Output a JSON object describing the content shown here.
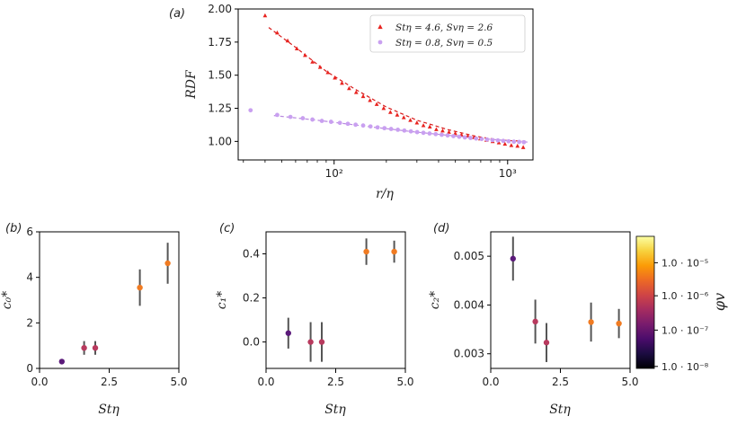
{
  "chart_data": [
    {
      "panel_label": "(a)",
      "type": "scatter",
      "x_scale": "log",
      "xlabel": "r/η",
      "ylabel": "RDF",
      "xlim": [
        28,
        1400
      ],
      "ylim": [
        0.86,
        2.0
      ],
      "ytick_labels": [
        "1.00",
        "1.25",
        "1.50",
        "1.75",
        "2.00"
      ],
      "ytick_values": [
        1.0,
        1.25,
        1.5,
        1.75,
        2.0
      ],
      "xtick_labels": [
        "10²",
        "10³"
      ],
      "xtick_values": [
        100,
        1000
      ],
      "legend_position": "top-right",
      "series": [
        {
          "name": "St_η = 4.6, Sv_η = 2.6",
          "legend_label": "Stη = 4.6, Svη = 2.6",
          "marker": "triangle",
          "color": "#e8231f",
          "x": [
            40,
            47,
            54,
            61,
            68,
            75,
            83,
            92,
            101,
            111,
            122,
            134,
            147,
            161,
            176,
            193,
            211,
            231,
            252,
            275,
            300,
            327,
            356,
            388,
            422,
            459,
            499,
            542,
            589,
            640,
            695,
            755,
            820,
            890,
            965,
            1050,
            1140,
            1230
          ],
          "y": [
            1.95,
            1.82,
            1.76,
            1.7,
            1.65,
            1.6,
            1.56,
            1.52,
            1.48,
            1.44,
            1.4,
            1.37,
            1.34,
            1.31,
            1.28,
            1.25,
            1.22,
            1.2,
            1.18,
            1.16,
            1.14,
            1.12,
            1.11,
            1.09,
            1.08,
            1.07,
            1.06,
            1.05,
            1.04,
            1.03,
            1.02,
            1.01,
            1.0,
            0.99,
            0.98,
            0.97,
            0.965,
            0.955
          ],
          "fit_x": [
            42,
            60,
            90,
            130,
            200,
            300,
            450,
            650,
            900,
            1300
          ],
          "fit_y": [
            1.86,
            1.71,
            1.53,
            1.4,
            1.26,
            1.16,
            1.09,
            1.04,
            1.01,
            1.0
          ]
        },
        {
          "name": "St_η = 0.8, Sv_η = 0.5",
          "legend_label": "Stη = 0.8, Svη = 0.5",
          "marker": "circle",
          "color": "#c9a0f0",
          "x": [
            33,
            47,
            56,
            66,
            75,
            85,
            96,
            108,
            120,
            133,
            147,
            162,
            178,
            195,
            213,
            233,
            254,
            277,
            301,
            327,
            355,
            385,
            417,
            451,
            487,
            526,
            567,
            611,
            658,
            708,
            761,
            818,
            879,
            944,
            1013,
            1087,
            1166,
            1240
          ],
          "y": [
            1.235,
            1.2,
            1.185,
            1.175,
            1.165,
            1.155,
            1.148,
            1.14,
            1.133,
            1.126,
            1.12,
            1.113,
            1.106,
            1.1,
            1.094,
            1.088,
            1.082,
            1.076,
            1.07,
            1.065,
            1.06,
            1.055,
            1.05,
            1.045,
            1.04,
            1.035,
            1.03,
            1.026,
            1.022,
            1.018,
            1.014,
            1.01,
            1.007,
            1.004,
            1.001,
            0.998,
            0.996,
            0.994
          ],
          "fit_x": [
            45,
            80,
            150,
            300,
            600,
            1000,
            1300
          ],
          "fit_y": [
            1.195,
            1.16,
            1.115,
            1.07,
            1.03,
            1.005,
            0.995
          ]
        }
      ]
    },
    {
      "panel_label": "(b)",
      "type": "scatter",
      "xlabel": "Stη",
      "ylabel": "c₀*",
      "xlim": [
        0,
        5
      ],
      "ylim": [
        0,
        6
      ],
      "xtick_labels": [
        "0.0",
        "2.5",
        "5.0"
      ],
      "xtick_values": [
        0,
        2.5,
        5
      ],
      "ytick_labels": [
        "0",
        "2",
        "4",
        "6"
      ],
      "ytick_values": [
        0,
        2,
        4,
        6
      ],
      "points": [
        {
          "x": 0.8,
          "y": 0.3,
          "err": 0,
          "color": "#5b1a7a"
        },
        {
          "x": 1.6,
          "y": 0.9,
          "err": 0.3,
          "color": "#b83a5e"
        },
        {
          "x": 2.0,
          "y": 0.9,
          "err": 0.3,
          "color": "#b83a5e"
        },
        {
          "x": 3.6,
          "y": 3.55,
          "err": 0.8,
          "color": "#f07b22"
        },
        {
          "x": 4.6,
          "y": 4.62,
          "err": 0.9,
          "color": "#f07b22"
        }
      ]
    },
    {
      "panel_label": "(c)",
      "type": "scatter",
      "xlabel": "Stη",
      "ylabel": "c₁*",
      "xlim": [
        0,
        5
      ],
      "ylim": [
        -0.12,
        0.5
      ],
      "xtick_labels": [
        "0.0",
        "2.5",
        "5.0"
      ],
      "xtick_values": [
        0,
        2.5,
        5
      ],
      "ytick_labels": [
        "0.0",
        "0.2",
        "0.4"
      ],
      "ytick_values": [
        0,
        0.2,
        0.4
      ],
      "points": [
        {
          "x": 0.8,
          "y": 0.04,
          "err": 0.07,
          "color": "#5b1a7a"
        },
        {
          "x": 1.6,
          "y": 0.0,
          "err": 0.09,
          "color": "#b83a5e"
        },
        {
          "x": 2.0,
          "y": 0.0,
          "err": 0.09,
          "color": "#b83a5e"
        },
        {
          "x": 3.6,
          "y": 0.41,
          "err": 0.06,
          "color": "#f07b22"
        },
        {
          "x": 4.6,
          "y": 0.41,
          "err": 0.05,
          "color": "#f07b22"
        }
      ]
    },
    {
      "panel_label": "(d)",
      "type": "scatter",
      "xlabel": "Stη",
      "ylabel": "c₂*",
      "xlim": [
        0,
        5
      ],
      "ylim": [
        0.0027,
        0.0055
      ],
      "xtick_labels": [
        "0.0",
        "2.5",
        "5.0"
      ],
      "xtick_values": [
        0,
        2.5,
        5
      ],
      "ytick_labels": [
        "0.003",
        "0.004",
        "0.005"
      ],
      "ytick_values": [
        0.003,
        0.004,
        0.005
      ],
      "points": [
        {
          "x": 0.8,
          "y": 0.00495,
          "err": 0.00045,
          "color": "#5b1a7a"
        },
        {
          "x": 1.6,
          "y": 0.00366,
          "err": 0.00045,
          "color": "#b83a5e"
        },
        {
          "x": 2.0,
          "y": 0.00323,
          "err": 0.0004,
          "color": "#b83a5e"
        },
        {
          "x": 3.6,
          "y": 0.00365,
          "err": 0.0004,
          "color": "#f07b22"
        },
        {
          "x": 4.6,
          "y": 0.00362,
          "err": 0.0003,
          "color": "#f07b22"
        }
      ]
    }
  ],
  "colorbar": {
    "label": "φv",
    "tick_labels": [
      "1.0 · 10⁻⁵",
      "1.0 · 10⁻⁶",
      "1.0 · 10⁻⁷",
      "1.0 · 10⁻⁸"
    ],
    "colors": [
      "#fcffa4",
      "#f7d13d",
      "#fb9b06",
      "#ed6925",
      "#cf4446",
      "#a52c60",
      "#781c6d",
      "#4a0c6b",
      "#1b0c41",
      "#000004"
    ]
  }
}
